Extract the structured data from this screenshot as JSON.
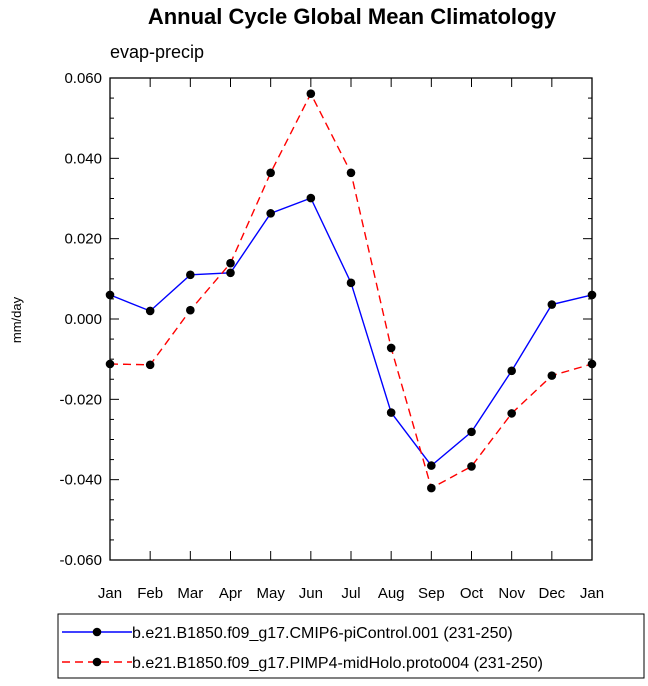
{
  "chart_data": {
    "type": "line",
    "title": "Annual Cycle Global Mean Climatology",
    "subtitle": "evap-precip",
    "xlabel": "",
    "ylabel": "mm/day",
    "categories": [
      "Jan",
      "Feb",
      "Mar",
      "Apr",
      "May",
      "Jun",
      "Jul",
      "Aug",
      "Sep",
      "Oct",
      "Nov",
      "Dec",
      "Jan"
    ],
    "ylim": [
      -0.06,
      0.06
    ],
    "yticks": [
      "0.060",
      "0.040",
      "0.020",
      "0.000",
      "-0.020",
      "-0.040",
      "-0.060"
    ],
    "ytick_values": [
      0.06,
      0.04,
      0.02,
      0.0,
      -0.02,
      -0.04,
      -0.06
    ],
    "series": [
      {
        "name": "b.e21.B1850.f09_g17.CMIP6-piControl.001 (231-250)",
        "color": "#0000ff",
        "dash": "solid",
        "values": [
          0.006,
          0.002,
          0.011,
          0.0115,
          0.0263,
          0.0301,
          0.009,
          -0.0233,
          -0.0365,
          -0.0281,
          -0.0129,
          0.0036,
          0.006
        ]
      },
      {
        "name": "b.e21.B1850.f09_g17.PIMP4-midHolo.proto004 (231-250)",
        "color": "#ff0000",
        "dash": "dashed",
        "values": [
          -0.0112,
          -0.0114,
          0.0022,
          0.0139,
          0.0364,
          0.0561,
          0.0364,
          -0.0072,
          -0.0421,
          -0.0367,
          -0.0235,
          -0.0141,
          -0.0112
        ]
      }
    ]
  }
}
